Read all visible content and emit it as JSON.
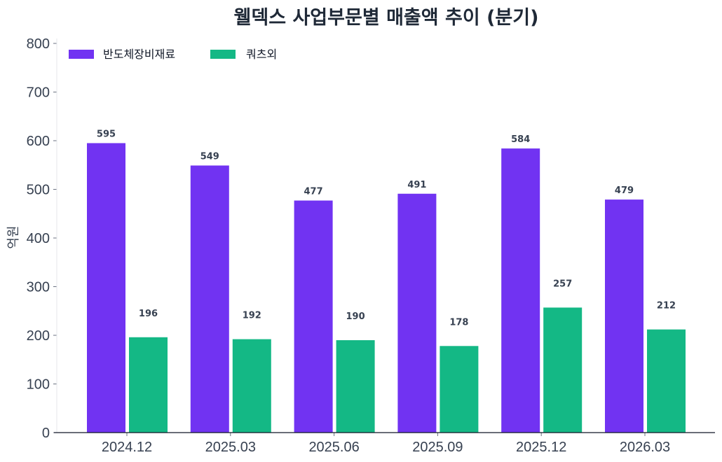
{
  "chart_data": {
    "type": "bar",
    "title": "웰덱스 사업부문별 매출액 추이 (분기)",
    "xlabel": "",
    "ylabel": "억원",
    "ylim": [
      0,
      800
    ],
    "yticks": [
      0,
      100,
      200,
      300,
      400,
      500,
      600,
      700,
      800
    ],
    "categories": [
      "2024.12",
      "2025.03",
      "2025.06",
      "2025.09",
      "2025.12",
      "2026.03"
    ],
    "series": [
      {
        "name": "반도체장비재료",
        "color": "#7133f2",
        "values": [
          595,
          549,
          477,
          491,
          584,
          479
        ]
      },
      {
        "name": "쿼츠외",
        "color": "#14b885",
        "values": [
          196,
          192,
          190,
          178,
          257,
          212
        ]
      }
    ],
    "legend": "top-left",
    "grid": false
  }
}
